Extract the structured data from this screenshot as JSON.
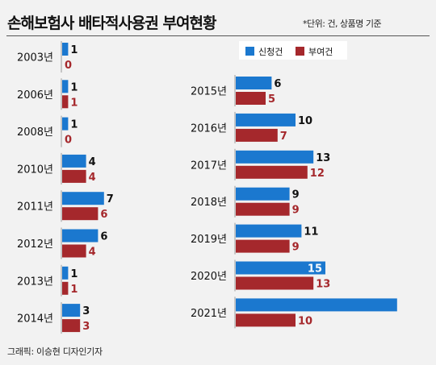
{
  "title": "손해보험사 배타적사용권 부여현황",
  "unit_note": "*단위: 건, 상품명 기준",
  "credit": "그래픽: 이승현 디자인기자",
  "colors": {
    "applied": "#1b78cf",
    "granted": "#a5282c",
    "applied_label": "#111111",
    "granted_label": "#a5282c",
    "background": "#f2f2f2"
  },
  "chart_data": {
    "type": "bar",
    "orientation": "horizontal",
    "legend": [
      {
        "name": "신청건",
        "color": "#1b78cf"
      },
      {
        "name": "부여건",
        "color": "#a5282c"
      }
    ],
    "legend_position": "top-right",
    "grid": false,
    "panels": [
      {
        "categories": [
          "2003년",
          "2006년",
          "2008년",
          "2010년",
          "2011년",
          "2012년",
          "2013년",
          "2014년"
        ],
        "series": [
          {
            "name": "신청건",
            "values": [
              1,
              1,
              1,
              4,
              7,
              6,
              1,
              3
            ]
          },
          {
            "name": "부여건",
            "values": [
              0,
              1,
              0,
              4,
              6,
              4,
              1,
              3
            ]
          }
        ]
      },
      {
        "categories": [
          "2015년",
          "2016년",
          "2017년",
          "2018년",
          "2019년",
          "2020년",
          "2021년"
        ],
        "series": [
          {
            "name": "신청건",
            "values": [
              6,
              10,
              13,
              9,
              11,
              15,
              null
            ]
          },
          {
            "name": "부여건",
            "values": [
              5,
              7,
              12,
              9,
              9,
              13,
              10
            ]
          }
        ]
      }
    ]
  }
}
